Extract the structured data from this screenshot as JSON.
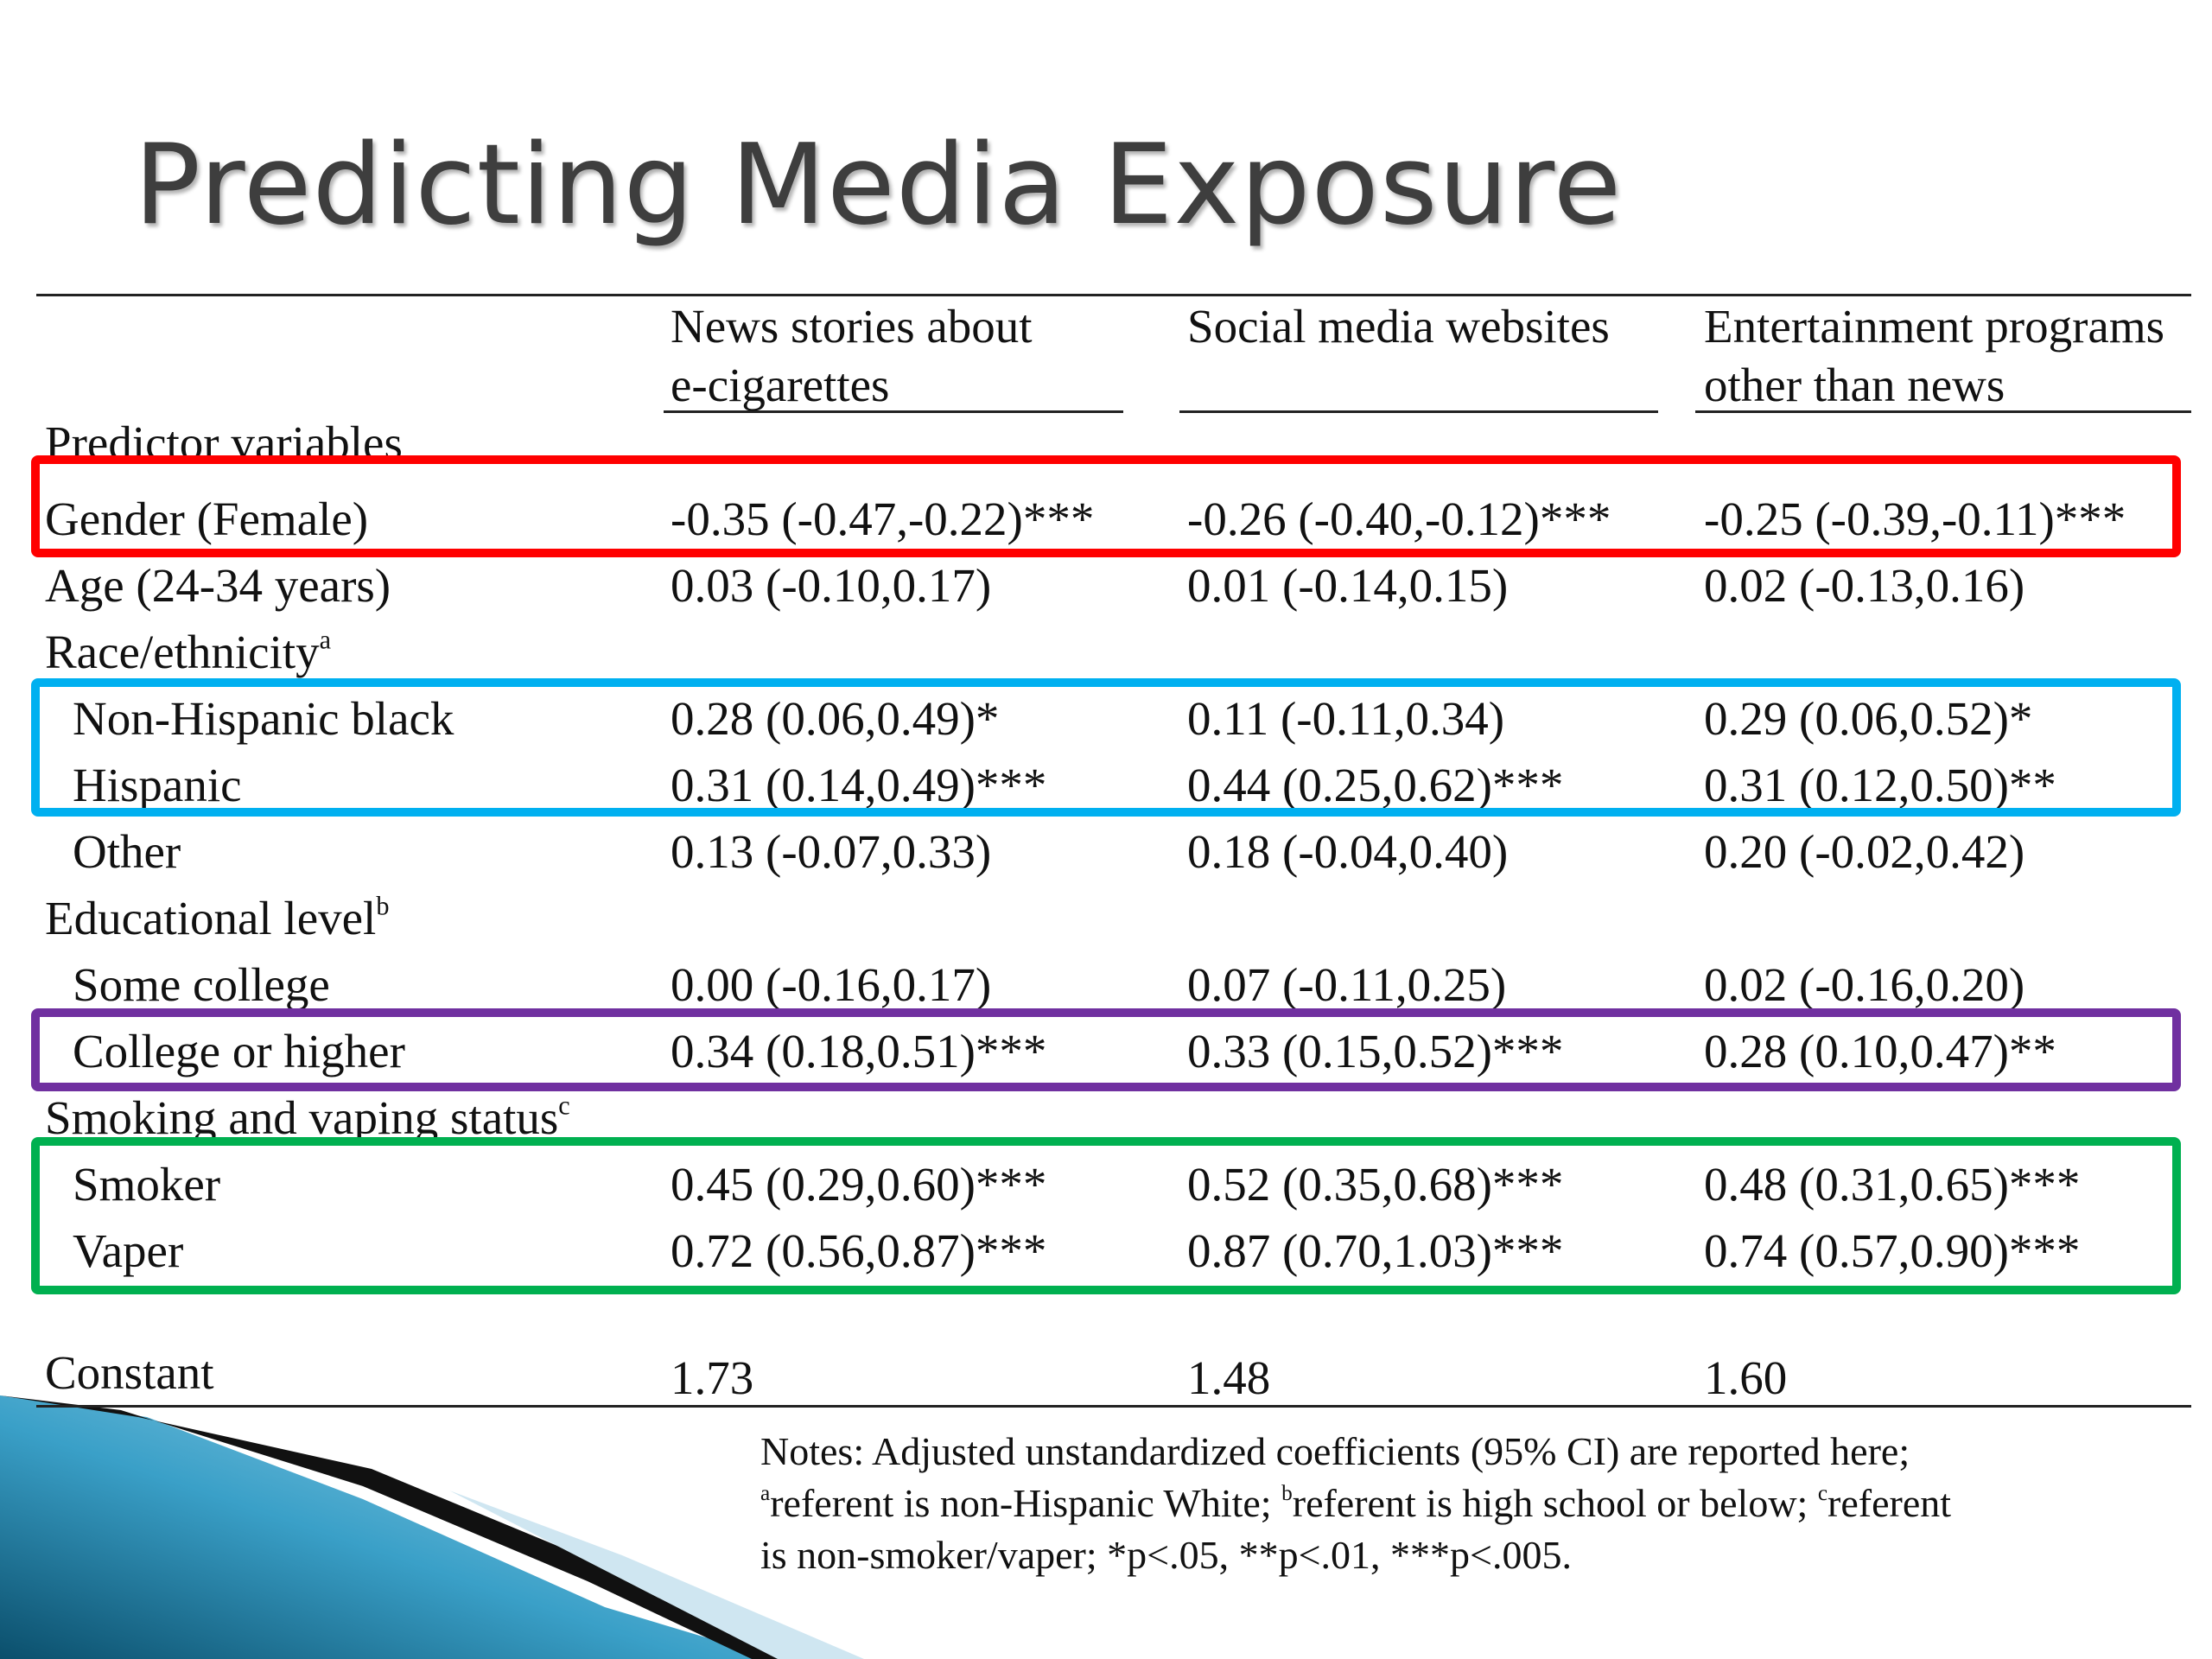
{
  "title": "Predicting Media Exposure",
  "table": {
    "columns": [
      {
        "line1": "News stories about",
        "line2": "e-cigarettes"
      },
      {
        "line1": "Social media websites",
        "line2": ""
      },
      {
        "line1": "Entertainment programs",
        "line2": "other than news"
      }
    ],
    "section_label": "Predictor variables",
    "rows": [
      {
        "label": "Gender (Female)",
        "sup": "",
        "values": [
          "-0.35 (-0.47,-0.22)***",
          "-0.26 (-0.40,-0.12)***",
          "-0.25 (-0.39,-0.11)***"
        ]
      },
      {
        "label": "Age (24-34 years)",
        "sup": "",
        "values": [
          "0.03 (-0.10,0.17)",
          "0.01 (-0.14,0.15)",
          "0.02 (-0.13,0.16)"
        ]
      },
      {
        "label": "Race/ethnicity",
        "sup": "a",
        "values": []
      },
      {
        "label": "Non-Hispanic black",
        "sup": "",
        "indent": true,
        "values": [
          "0.28 (0.06,0.49)*",
          "0.11 (-0.11,0.34)",
          "0.29 (0.06,0.52)*"
        ]
      },
      {
        "label": "Hispanic",
        "sup": "",
        "indent": true,
        "values": [
          "0.31 (0.14,0.49)***",
          "0.44 (0.25,0.62)***",
          "0.31 (0.12,0.50)**"
        ]
      },
      {
        "label": "Other",
        "sup": "",
        "indent": true,
        "values": [
          "0.13 (-0.07,0.33)",
          "0.18 (-0.04,0.40)",
          "0.20 (-0.02,0.42)"
        ]
      },
      {
        "label": "Educational level",
        "sup": "b",
        "values": []
      },
      {
        "label": "Some college",
        "sup": "",
        "indent": true,
        "values": [
          "0.00 (-0.16,0.17)",
          "0.07 (-0.11,0.25)",
          "0.02 (-0.16,0.20)"
        ]
      },
      {
        "label": "College or higher",
        "sup": "",
        "indent": true,
        "values": [
          "0.34 (0.18,0.51)***",
          "0.33 (0.15,0.52)***",
          "0.28 (0.10,0.47)**"
        ]
      },
      {
        "label": "Smoking and vaping status",
        "sup": "c",
        "values": []
      },
      {
        "label": "Smoker",
        "sup": "",
        "indent": true,
        "values": [
          "0.45 (0.29,0.60)***",
          "0.52 (0.35,0.68)***",
          "0.48 (0.31,0.65)***"
        ]
      },
      {
        "label": "Vaper",
        "sup": "",
        "indent": true,
        "values": [
          "0.72 (0.56,0.87)***",
          "0.87 (0.70,1.03)***",
          "0.74 (0.57,0.90)***"
        ]
      }
    ],
    "constant": {
      "label": "Constant",
      "values": [
        "1.73",
        "1.48",
        "1.60"
      ]
    }
  },
  "highlight_colors": {
    "red": "#ff0000",
    "blue": "#00b0f0",
    "purple": "#7030a0",
    "green": "#00b050"
  },
  "notes": {
    "line1": "Notes: Adjusted unstandardized coefficients (95% CI) are reported here;",
    "line2_sup_a": "a",
    "line2_a": "referent is non-Hispanic White; ",
    "line2_sup_b": "b",
    "line2_b": "referent is high school or below; ",
    "line2_sup_c": "c",
    "line2_c": "referent",
    "line3": "is non-smoker/vaper; *p<.05, **p<.01, ***p<.005."
  }
}
